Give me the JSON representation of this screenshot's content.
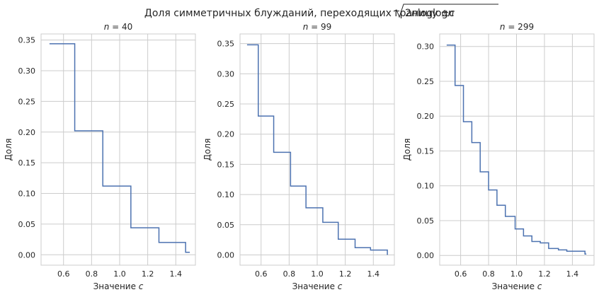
{
  "figure": {
    "title_prefix": "Доля симметричных блужданий, переходящих границу ±",
    "title_c": "c",
    "title_radicand_num": "2",
    "title_radicand_var": "n",
    "title_radicand_func": "loglog",
    "title_radicand_end": "n"
  },
  "colors": {
    "line": "#4c72b0",
    "grid": "#cccccc",
    "frame": "#cccccc"
  },
  "chart_data": [
    {
      "type": "line",
      "step": "post",
      "title_var": "n",
      "title_rest": " = 40",
      "xlabel_text": "Значение ",
      "xlabel_var": "c",
      "ylabel": "Доля",
      "xlim": [
        0.44,
        1.54
      ],
      "ylim": [
        -0.017,
        0.36
      ],
      "xticks": [
        0.6,
        0.8,
        1.0,
        1.2,
        1.4
      ],
      "xtick_labels": [
        "0.6",
        "0.8",
        "1.0",
        "1.2",
        "1.4"
      ],
      "yticks": [
        0.0,
        0.05,
        0.1,
        0.15,
        0.2,
        0.25,
        0.3,
        0.35
      ],
      "ytick_labels": [
        "0.00",
        "0.05",
        "0.10",
        "0.15",
        "0.20",
        "0.25",
        "0.30",
        "0.35"
      ],
      "grid": true,
      "series": [
        {
          "x": [
            0.5,
            0.68,
            0.88,
            1.08,
            1.28,
            1.47,
            1.5
          ],
          "y": [
            0.344,
            0.202,
            0.112,
            0.044,
            0.02,
            0.004,
            0.004
          ]
        }
      ]
    },
    {
      "type": "line",
      "step": "post",
      "title_var": "n",
      "title_rest": " = 99",
      "xlabel_text": "Значение ",
      "xlabel_var": "c",
      "ylabel": "Доля",
      "xlim": [
        0.45,
        1.55
      ],
      "ylim": [
        -0.017,
        0.366
      ],
      "xticks": [
        0.6,
        0.8,
        1.0,
        1.2,
        1.4
      ],
      "xtick_labels": [
        "0.6",
        "0.8",
        "1.0",
        "1.2",
        "1.4"
      ],
      "yticks": [
        0.0,
        0.05,
        0.1,
        0.15,
        0.2,
        0.25,
        0.3,
        0.35
      ],
      "ytick_labels": [
        "0.00",
        "0.05",
        "0.10",
        "0.15",
        "0.20",
        "0.25",
        "0.30",
        "0.35"
      ],
      "grid": true,
      "series": [
        {
          "x": [
            0.5,
            0.58,
            0.69,
            0.81,
            0.92,
            1.04,
            1.15,
            1.27,
            1.38,
            1.5
          ],
          "y": [
            0.348,
            0.23,
            0.17,
            0.114,
            0.078,
            0.054,
            0.026,
            0.012,
            0.008,
            0.0
          ]
        }
      ]
    },
    {
      "type": "line",
      "step": "post",
      "title_var": "n",
      "title_rest": " = 299",
      "xlabel_text": "Значение ",
      "xlabel_var": "c",
      "ylabel": "Доля",
      "xlim": [
        0.45,
        1.555
      ],
      "ylim": [
        -0.014,
        0.318
      ],
      "xticks": [
        0.6,
        0.8,
        1.0,
        1.2,
        1.4
      ],
      "xtick_labels": [
        "0.6",
        "0.8",
        "1.0",
        "1.2",
        "1.4"
      ],
      "yticks": [
        0.0,
        0.05,
        0.1,
        0.15,
        0.2,
        0.25,
        0.3
      ],
      "ytick_labels": [
        "0.00",
        "0.05",
        "0.10",
        "0.15",
        "0.20",
        "0.25",
        "0.30"
      ],
      "grid": true,
      "series": [
        {
          "x": [
            0.5,
            0.56,
            0.62,
            0.68,
            0.74,
            0.8,
            0.86,
            0.92,
            0.99,
            1.05,
            1.11,
            1.17,
            1.23,
            1.3,
            1.36,
            1.49,
            1.5
          ],
          "y": [
            0.302,
            0.244,
            0.192,
            0.162,
            0.12,
            0.094,
            0.072,
            0.056,
            0.038,
            0.028,
            0.02,
            0.018,
            0.01,
            0.008,
            0.006,
            0.002,
            0.002
          ]
        }
      ]
    }
  ]
}
